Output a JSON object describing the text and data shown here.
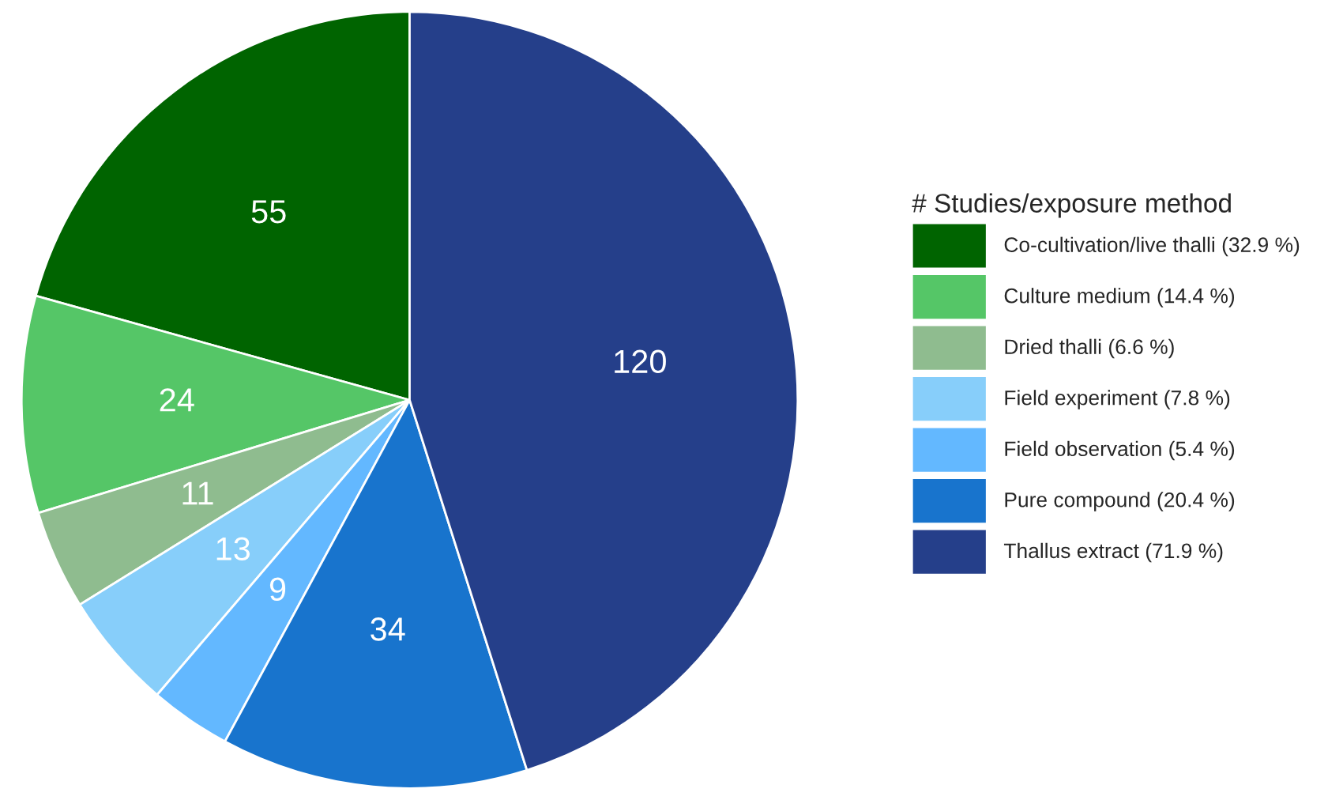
{
  "chart_data": {
    "type": "pie",
    "legend_title": "# Studies/exposure method",
    "categories": [
      "Co-cultivation/live thalli (32.9 %)",
      "Culture medium (14.4 %)",
      "Dried thalli (6.6 %)",
      "Field experiment (7.8 %)",
      "Field observation (5.4 %)",
      "Pure compound (20.4 %)",
      "Thallus extract (71.9 %)"
    ],
    "values": [
      55,
      24,
      11,
      13,
      9,
      34,
      120
    ],
    "colors": [
      "#006400",
      "#55c667",
      "#8fbc8f",
      "#87cefa",
      "#63b8ff",
      "#1874cd",
      "#253f8a"
    ],
    "data_labels": true,
    "legend": "right"
  }
}
